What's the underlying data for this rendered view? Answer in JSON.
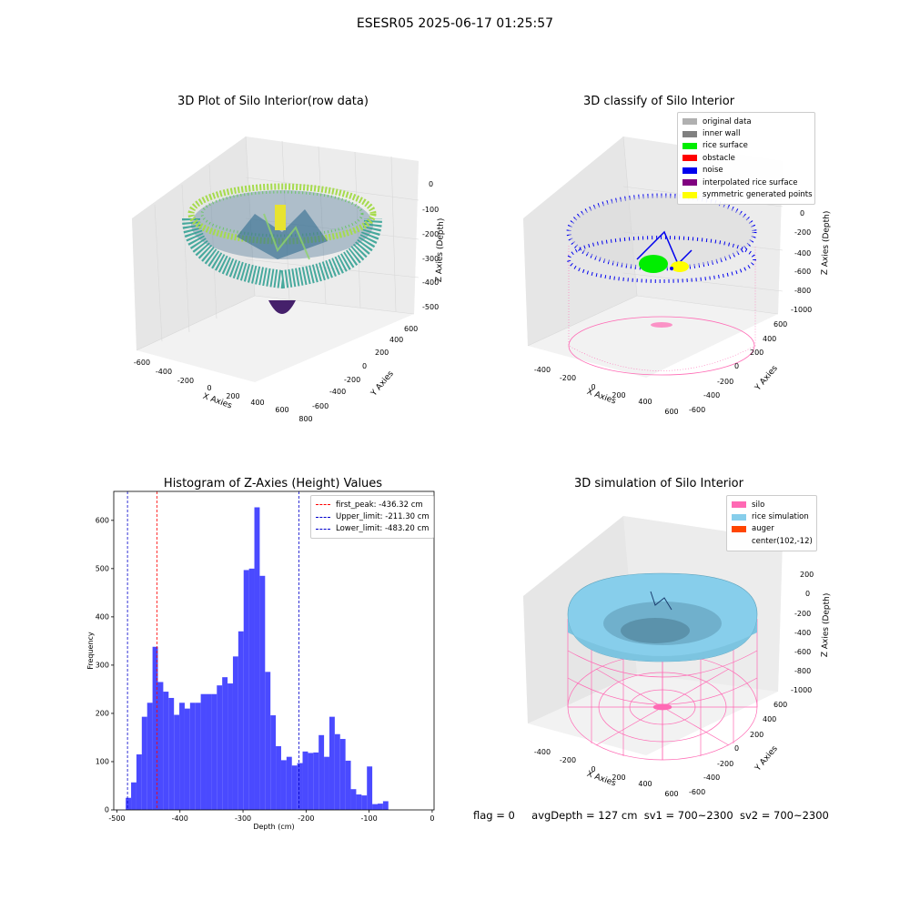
{
  "figure": {
    "suptitle": "ESESR05 2025-06-17 01:25:57",
    "status": {
      "flag": "flag = 0",
      "avg_depth": "avgDepth = 127 cm",
      "sv1": "sv1 = 700~2300",
      "sv2": "sv2 = 700~2300"
    }
  },
  "panels": {
    "raw": {
      "title": "3D Plot of Silo Interior(row data)",
      "xlabel": "X Axies",
      "ylabel": "Y Axies",
      "zlabel": "Z Axies (Depth)",
      "xticks": [
        "-600",
        "-400",
        "-200",
        "0",
        "200",
        "400",
        "600",
        "800"
      ],
      "yticks": [
        "-600",
        "-400",
        "-200",
        "0",
        "200",
        "400",
        "600"
      ],
      "zticks": [
        "0",
        "-100",
        "-200",
        "-300",
        "-400",
        "-500"
      ]
    },
    "classify": {
      "title": "3D classify of Silo Interior",
      "xlabel": "X Axies",
      "ylabel": "Y Axies",
      "zlabel": "Z Axies (Depth)",
      "xticks": [
        "-400",
        "-200",
        "0",
        "200",
        "400",
        "600"
      ],
      "yticks": [
        "-600",
        "-400",
        "-200",
        "0",
        "200",
        "400",
        "600"
      ],
      "zticks": [
        "200",
        "0",
        "-200",
        "-400",
        "-600",
        "-800",
        "-1000"
      ],
      "legend": [
        {
          "label": "original data",
          "color": "#b0b0b0"
        },
        {
          "label": "inner wall",
          "color": "#808080"
        },
        {
          "label": "rice surface",
          "color": "#00ee00"
        },
        {
          "label": "obstacle",
          "color": "#ff0000"
        },
        {
          "label": "noise",
          "color": "#0000ee"
        },
        {
          "label": "interpolated rice surface",
          "color": "#800080"
        },
        {
          "label": "symmetric generated points",
          "color": "#ffff00"
        }
      ]
    },
    "simulation": {
      "title": "3D simulation of Silo Interior",
      "xlabel": "X Axies",
      "ylabel": "Y Axies",
      "zlabel": "Z Axies (Depth)",
      "xticks": [
        "-400",
        "-200",
        "0",
        "200",
        "400",
        "600"
      ],
      "yticks": [
        "-600",
        "-400",
        "-200",
        "0",
        "200",
        "400",
        "600"
      ],
      "zticks": [
        "200",
        "0",
        "-200",
        "-400",
        "-600",
        "-800",
        "-1000"
      ],
      "legend": [
        {
          "label": "silo",
          "color": "#ff69b4"
        },
        {
          "label": "rice simulation",
          "color": "#87ceeb"
        },
        {
          "label": "auger",
          "color": "#ff4500"
        },
        {
          "label": "center(102,-12)",
          "color": ""
        }
      ]
    }
  },
  "chart_data": {
    "type": "bar",
    "title": "Histogram of Z-Axies (Height) Values",
    "xlabel": "Depth (cm)",
    "ylabel": "Frequency",
    "xlim": [
      -505,
      3
    ],
    "ylim": [
      0,
      660
    ],
    "xticks": [
      -500,
      -400,
      -300,
      -200,
      -100,
      0
    ],
    "yticks": [
      0,
      100,
      200,
      300,
      400,
      500,
      600
    ],
    "bar_color": "#4040ff",
    "bin_start": -486,
    "bin_width": 8.5,
    "values": [
      25,
      57,
      115,
      193,
      222,
      338,
      265,
      245,
      232,
      197,
      222,
      210,
      222,
      222,
      240,
      240,
      240,
      258,
      275,
      262,
      318,
      370,
      497,
      500,
      627,
      485,
      286,
      196,
      132,
      103,
      110,
      92,
      97,
      121,
      118,
      119,
      155,
      110,
      193,
      157,
      147,
      102,
      43,
      32,
      30,
      90,
      12,
      13,
      18
    ],
    "lines": [
      {
        "label": "first_peak: -436.32 cm",
        "x": -436.32,
        "color": "#ff0000"
      },
      {
        "label": "Upper_limit: -211.30 cm",
        "x": -211.3,
        "color": "#0000cc"
      },
      {
        "label": "Lower_limit: -483.20 cm",
        "x": -483.2,
        "color": "#0000cc"
      }
    ],
    "legend_position": "upper-right",
    "grid": false
  }
}
